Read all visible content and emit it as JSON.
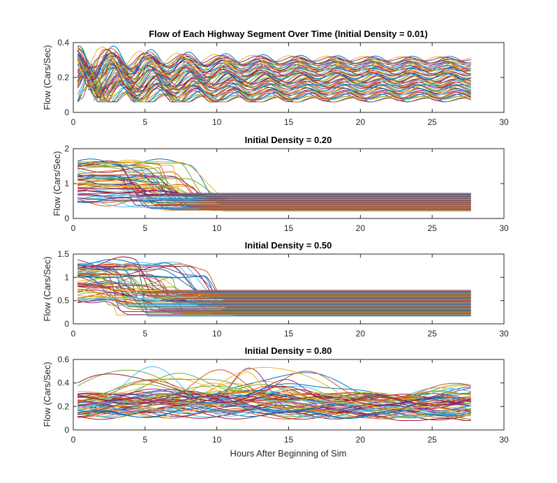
{
  "chart_data": [
    {
      "type": "line",
      "title": "Flow of Each Highway Segment Over Time (Initial Density = 0.01)",
      "xlabel": "",
      "ylabel": "Flow (Cars/Sec)",
      "xlim": [
        0,
        30
      ],
      "ylim": [
        0,
        0.4
      ],
      "xticks": [
        "0",
        "5",
        "10",
        "15",
        "20",
        "25",
        "30"
      ],
      "yticks": [
        "0",
        "0.2",
        "0.4"
      ],
      "grid": false,
      "x_end": 27.7,
      "series_count": 60,
      "pattern": "oscillating",
      "steady_range": [
        0.07,
        0.31
      ],
      "initial_peak": 0.38
    },
    {
      "type": "line",
      "title": "Initial Density = 0.20",
      "xlabel": "",
      "ylabel": "Flow (Cars/Sec)",
      "xlim": [
        0,
        30
      ],
      "ylim": [
        0,
        2
      ],
      "xticks": [
        "0",
        "5",
        "10",
        "15",
        "20",
        "25",
        "30"
      ],
      "yticks": [
        "0",
        "1",
        "2"
      ],
      "grid": false,
      "x_end": 27.7,
      "series_count": 60,
      "pattern": "drop_to_constant",
      "initial_range": [
        0.4,
        1.65
      ],
      "steady_range": [
        0.22,
        0.72
      ],
      "transition_range": [
        3.5,
        9.5
      ]
    },
    {
      "type": "line",
      "title": "Initial Density = 0.50",
      "xlabel": "",
      "ylabel": "Flow (Cars/Sec)",
      "xlim": [
        0,
        30
      ],
      "ylim": [
        0,
        1.5
      ],
      "xticks": [
        "0",
        "5",
        "10",
        "15",
        "20",
        "25",
        "30"
      ],
      "yticks": [
        "0",
        "0.5",
        "1",
        "1.5"
      ],
      "grid": false,
      "x_end": 27.7,
      "series_count": 60,
      "pattern": "drop_to_constant",
      "initial_range": [
        0.45,
        1.35
      ],
      "steady_range": [
        0.17,
        0.72
      ],
      "transition_range": [
        2,
        10
      ]
    },
    {
      "type": "line",
      "title": "Initial Density = 0.80",
      "xlabel": "Hours After Beginning of Sim",
      "ylabel": "Flow (Cars/Sec)",
      "xlim": [
        0,
        30
      ],
      "ylim": [
        0,
        0.6
      ],
      "xticks": [
        "0",
        "5",
        "10",
        "15",
        "20",
        "25",
        "30"
      ],
      "yticks": [
        "0",
        "0.2",
        "0.4",
        "0.6"
      ],
      "grid": false,
      "x_end": 27.7,
      "series_count": 60,
      "pattern": "waves",
      "base_range": [
        0.12,
        0.3
      ],
      "peak_max": 0.6
    }
  ],
  "palette": [
    "#0072bd",
    "#d95319",
    "#edb120",
    "#7e2f8e",
    "#77ac30",
    "#4dbeee",
    "#a2142f"
  ]
}
